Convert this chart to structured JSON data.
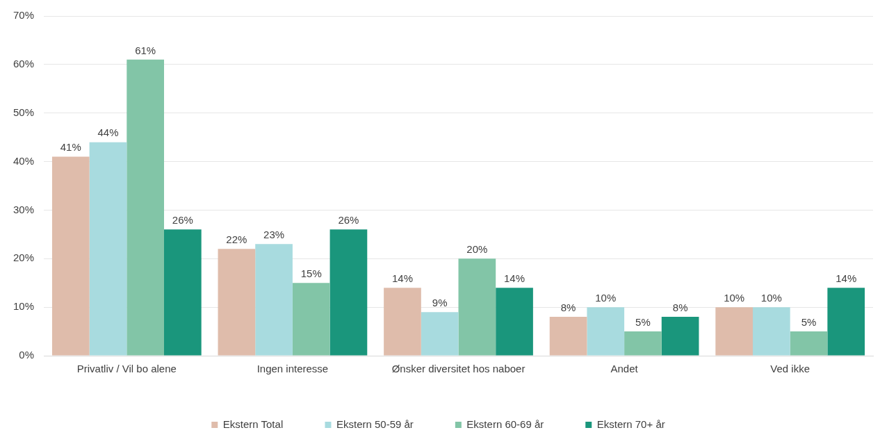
{
  "chart_data": {
    "type": "bar",
    "categories": [
      "Privatliv / Vil bo alene",
      "Ingen interesse",
      "Ønsker diversitet hos naboer",
      "Andet",
      "Ved ikke"
    ],
    "series": [
      {
        "name": "Ekstern Total",
        "color": "#dfbcab",
        "values": [
          41,
          22,
          14,
          8,
          10
        ],
        "value_labels": [
          "41%",
          "22%",
          "14%",
          "8%",
          "10%"
        ]
      },
      {
        "name": "Ekstern 50-59 år",
        "color": "#a8dbdf",
        "values": [
          44,
          23,
          9,
          10,
          10
        ],
        "value_labels": [
          "44%",
          "23%",
          "9%",
          "10%",
          "10%"
        ]
      },
      {
        "name": "Ekstern 60-69 år",
        "color": "#82c5a7",
        "values": [
          61,
          15,
          20,
          5,
          5
        ],
        "value_labels": [
          "61%",
          "15%",
          "20%",
          "5%",
          "5%"
        ]
      },
      {
        "name": "Ekstern 70+ år",
        "color": "#1a967c",
        "values": [
          26,
          26,
          14,
          8,
          14
        ],
        "value_labels": [
          "26%",
          "26%",
          "14%",
          "8%",
          "14%"
        ]
      }
    ],
    "ylim": [
      0,
      70
    ],
    "yticks": [
      {
        "value": 0,
        "label": "0%"
      },
      {
        "value": 10,
        "label": "10%"
      },
      {
        "value": 20,
        "label": "20%"
      },
      {
        "value": 30,
        "label": "30%"
      },
      {
        "value": 40,
        "label": "40%"
      },
      {
        "value": 50,
        "label": "50%"
      },
      {
        "value": 60,
        "label": "60%"
      },
      {
        "value": 70,
        "label": "70%"
      }
    ],
    "grid": "y",
    "legend": "bottom"
  }
}
